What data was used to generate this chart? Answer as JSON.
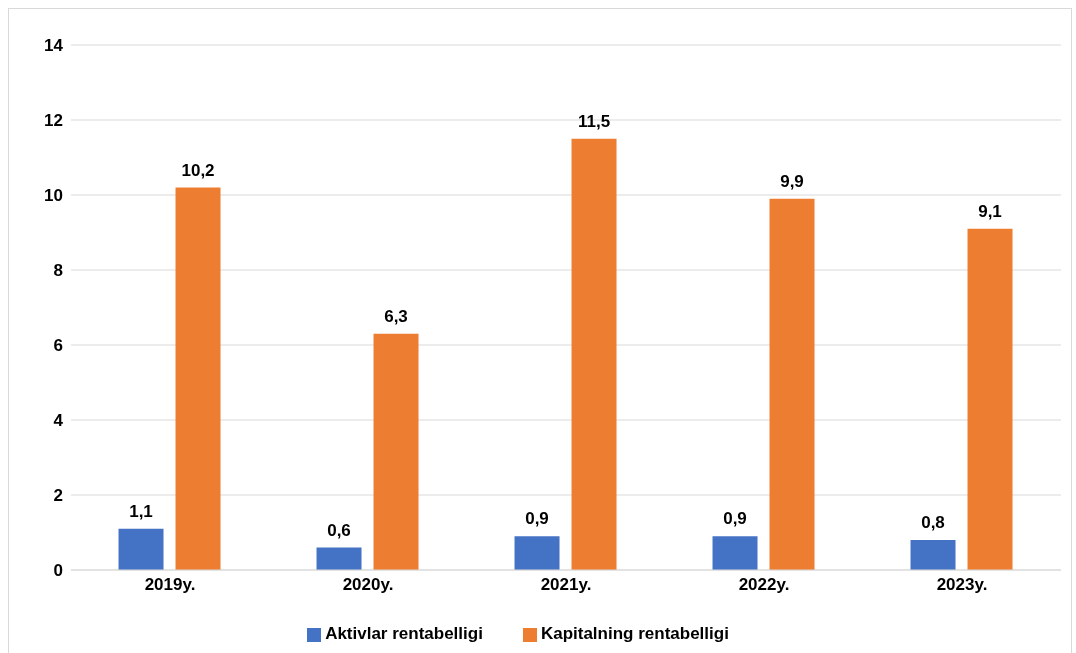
{
  "chart_data": {
    "type": "bar",
    "categories": [
      "2019y.",
      "2020y.",
      "2021y.",
      "2022y.",
      "2023y."
    ],
    "series": [
      {
        "name": "Aktivlar rentabelligi",
        "color": "#4472c4",
        "values": [
          1.1,
          0.6,
          0.9,
          0.9,
          0.8
        ],
        "value_labels": [
          "1,1",
          "0,6",
          "0,9",
          "0,9",
          "0,8"
        ]
      },
      {
        "name": "Kapitalning rentabelligi",
        "color": "#ed7d31",
        "values": [
          10.2,
          6.3,
          11.5,
          9.9,
          9.1
        ],
        "value_labels": [
          "10,2",
          "6,3",
          "11,5",
          "9,9",
          "9,1"
        ]
      }
    ],
    "ylim": [
      0,
      14
    ],
    "yticks": [
      0,
      2,
      4,
      6,
      8,
      10,
      12,
      14
    ],
    "grid": "y",
    "legend": "bottom"
  }
}
